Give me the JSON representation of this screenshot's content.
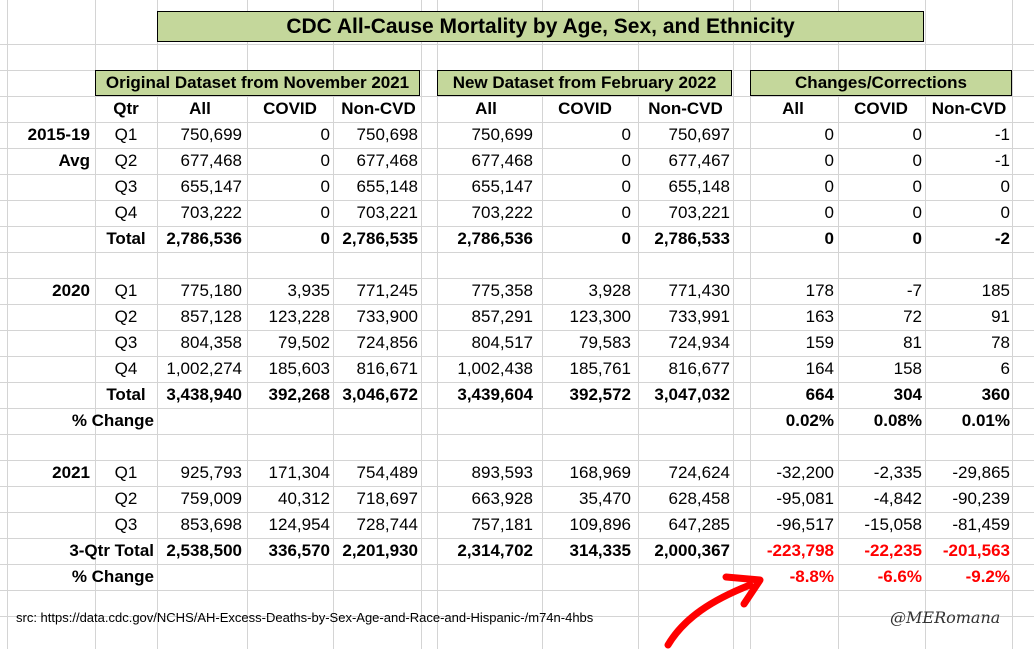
{
  "title": "CDC All-Cause Mortality by Age, Sex, and Ethnicity",
  "sections": {
    "original": "Original Dataset from November 2021",
    "new": "New Dataset from February 2022",
    "changes": "Changes/Corrections"
  },
  "headers": {
    "qtr": "Qtr",
    "all": "All",
    "covid": "COVID",
    "noncvd": "Non-CVD"
  },
  "rows": [
    {
      "group": "2015-19",
      "qtr": "Q1",
      "o": [
        "750,699",
        "0",
        "750,698"
      ],
      "n": [
        "750,699",
        "0",
        "750,697"
      ],
      "c": [
        "0",
        "0",
        "-1"
      ]
    },
    {
      "group": "Avg",
      "qtr": "Q2",
      "o": [
        "677,468",
        "0",
        "677,468"
      ],
      "n": [
        "677,468",
        "0",
        "677,467"
      ],
      "c": [
        "0",
        "0",
        "-1"
      ]
    },
    {
      "group": "",
      "qtr": "Q3",
      "o": [
        "655,147",
        "0",
        "655,148"
      ],
      "n": [
        "655,147",
        "0",
        "655,148"
      ],
      "c": [
        "0",
        "0",
        "0"
      ]
    },
    {
      "group": "",
      "qtr": "Q4",
      "o": [
        "703,222",
        "0",
        "703,221"
      ],
      "n": [
        "703,222",
        "0",
        "703,221"
      ],
      "c": [
        "0",
        "0",
        "0"
      ]
    },
    {
      "group": "",
      "qtr": "Total",
      "bold": true,
      "o": [
        "2,786,536",
        "0",
        "2,786,535"
      ],
      "n": [
        "2,786,536",
        "0",
        "2,786,533"
      ],
      "c": [
        "0",
        "0",
        "-2"
      ]
    },
    {
      "blank": true
    },
    {
      "group": "2020",
      "qtr": "Q1",
      "o": [
        "775,180",
        "3,935",
        "771,245"
      ],
      "n": [
        "775,358",
        "3,928",
        "771,430"
      ],
      "c": [
        "178",
        "-7",
        "185"
      ]
    },
    {
      "group": "",
      "qtr": "Q2",
      "o": [
        "857,128",
        "123,228",
        "733,900"
      ],
      "n": [
        "857,291",
        "123,300",
        "733,991"
      ],
      "c": [
        "163",
        "72",
        "91"
      ]
    },
    {
      "group": "",
      "qtr": "Q3",
      "o": [
        "804,358",
        "79,502",
        "724,856"
      ],
      "n": [
        "804,517",
        "79,583",
        "724,934"
      ],
      "c": [
        "159",
        "81",
        "78"
      ]
    },
    {
      "group": "",
      "qtr": "Q4",
      "o": [
        "1,002,274",
        "185,603",
        "816,671"
      ],
      "n": [
        "1,002,438",
        "185,761",
        "816,677"
      ],
      "c": [
        "164",
        "158",
        "6"
      ]
    },
    {
      "group": "",
      "qtr": "Total",
      "bold": true,
      "o": [
        "3,438,940",
        "392,268",
        "3,046,672"
      ],
      "n": [
        "3,439,604",
        "392,572",
        "3,047,032"
      ],
      "c": [
        "664",
        "304",
        "360"
      ]
    },
    {
      "pct": true,
      "label": "% Change",
      "c": [
        "0.02%",
        "0.08%",
        "0.01%"
      ]
    },
    {
      "blank": true
    },
    {
      "group": "2021",
      "qtr": "Q1",
      "o": [
        "925,793",
        "171,304",
        "754,489"
      ],
      "n": [
        "893,593",
        "168,969",
        "724,624"
      ],
      "c": [
        "-32,200",
        "-2,335",
        "-29,865"
      ]
    },
    {
      "group": "",
      "qtr": "Q2",
      "o": [
        "759,009",
        "40,312",
        "718,697"
      ],
      "n": [
        "663,928",
        "35,470",
        "628,458"
      ],
      "c": [
        "-95,081",
        "-4,842",
        "-90,239"
      ]
    },
    {
      "group": "",
      "qtr": "Q3",
      "o": [
        "853,698",
        "124,954",
        "728,744"
      ],
      "n": [
        "757,181",
        "109,896",
        "647,285"
      ],
      "c": [
        "-96,517",
        "-15,058",
        "-81,459"
      ]
    },
    {
      "group": "",
      "qtr": "",
      "label": "3-Qtr Total",
      "bold": true,
      "redC": true,
      "o": [
        "2,538,500",
        "336,570",
        "2,201,930"
      ],
      "n": [
        "2,314,702",
        "314,335",
        "2,000,367"
      ],
      "c": [
        "-223,798",
        "-22,235",
        "-201,563"
      ]
    },
    {
      "pct": true,
      "label": "% Change",
      "redC": true,
      "c": [
        "-8.8%",
        "-6.6%",
        "-9.2%"
      ]
    }
  ],
  "source": "src: https://data.cdc.gov/NCHS/AH-Excess-Deaths-by-Sex-Age-and-Race-and-Hispanic-/m74n-4hbs",
  "signature": "@MERomana",
  "colors": {
    "header_fill": "#c4d79b",
    "highlight": "#ff0000",
    "arrow": "#ff0000",
    "gridline": "#d4d4d4"
  }
}
